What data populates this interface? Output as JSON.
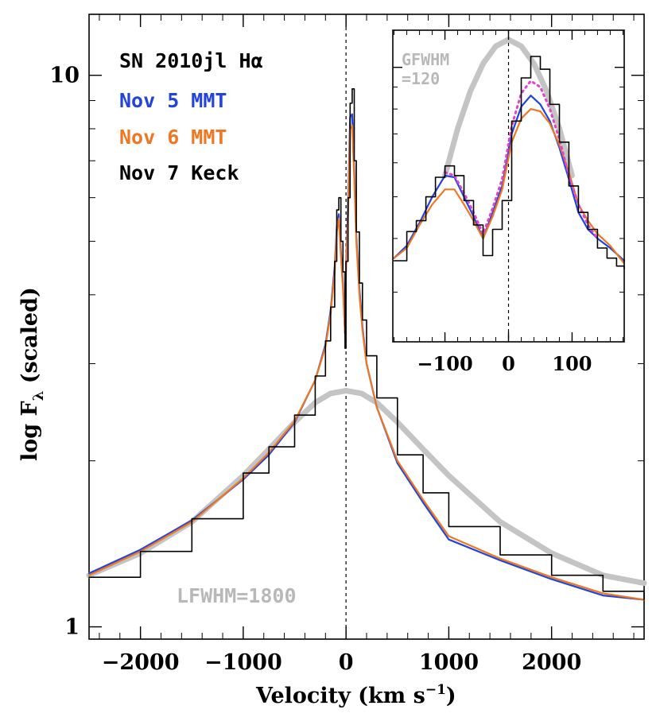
{
  "chart_data": [
    {
      "type": "line",
      "ylog": true,
      "xlabel": "Velocity (km s",
      "xlabel_sup": "−1",
      "xlabel_close": ")",
      "ylabel": "log F",
      "ylabel_sub": "λ",
      "ylabel_suffix": " (scaled)",
      "xlim": [
        -2500,
        2900
      ],
      "ylim": [
        0.95,
        12.9
      ],
      "x_ticks": [
        -2000,
        -1000,
        0,
        1000,
        2000
      ],
      "x_tick_labels": [
        "−2000",
        "−1000",
        "0",
        "1000",
        "2000"
      ],
      "y_ticks": [
        1,
        10
      ],
      "y_tick_labels": [
        "1",
        "10"
      ],
      "legend": [
        {
          "label": "SN 2010jl Hα",
          "color": "#000000"
        },
        {
          "label": "Nov 5 MMT",
          "color": "#2244dd"
        },
        {
          "label": "Nov 6 MMT",
          "color": "#ee7722"
        },
        {
          "label": "Nov 7 Keck",
          "color": "#000000"
        }
      ],
      "annotations": [
        {
          "text": "LFWHM=1800",
          "color": "#b8b8b8"
        }
      ],
      "series": [
        {
          "name": "Nov 7 Keck",
          "color": "#000000",
          "style": "steps",
          "x": [
            -2500,
            -2000,
            -1500,
            -1000,
            -750,
            -500,
            -300,
            -200,
            -150,
            -110,
            -90,
            -70,
            -50,
            -30,
            -10,
            0,
            20,
            40,
            60,
            80,
            100,
            130,
            160,
            200,
            300,
            500,
            750,
            1000,
            1500,
            2000,
            2500,
            2900
          ],
          "y": [
            1.23,
            1.37,
            1.57,
            1.9,
            2.12,
            2.42,
            2.85,
            3.3,
            3.8,
            4.6,
            5.7,
            6.0,
            5.0,
            4.4,
            3.2,
            4.6,
            6.0,
            8.9,
            9.45,
            7.0,
            5.2,
            4.2,
            3.6,
            3.1,
            2.6,
            2.05,
            1.75,
            1.52,
            1.35,
            1.24,
            1.16,
            1.12
          ]
        },
        {
          "name": "Nov 5 MMT",
          "color": "#2244dd",
          "style": "line",
          "x": [
            -2500,
            -2000,
            -1500,
            -1000,
            -750,
            -500,
            -300,
            -200,
            -150,
            -110,
            -90,
            -70,
            -50,
            -30,
            -10,
            0,
            20,
            40,
            60,
            80,
            100,
            130,
            160,
            200,
            300,
            500,
            750,
            1000,
            1500,
            2000,
            2500,
            2900
          ],
          "y": [
            1.25,
            1.38,
            1.56,
            1.85,
            2.05,
            2.35,
            2.8,
            3.25,
            3.75,
            4.5,
            5.3,
            5.6,
            4.8,
            4.2,
            3.4,
            4.5,
            5.8,
            8.4,
            8.5,
            6.7,
            5.1,
            4.1,
            3.5,
            3.0,
            2.5,
            1.98,
            1.68,
            1.44,
            1.32,
            1.22,
            1.14,
            1.12
          ]
        },
        {
          "name": "Nov 6 MMT",
          "color": "#ee7722",
          "style": "line",
          "x": [
            -2500,
            -2000,
            -1500,
            -1000,
            -750,
            -500,
            -300,
            -200,
            -150,
            -110,
            -90,
            -70,
            -50,
            -30,
            -10,
            0,
            20,
            40,
            60,
            80,
            100,
            130,
            160,
            200,
            300,
            500,
            750,
            1000,
            1500,
            2000,
            2500,
            2900
          ],
          "y": [
            1.24,
            1.37,
            1.55,
            1.86,
            2.07,
            2.36,
            2.8,
            3.22,
            3.7,
            4.4,
            5.2,
            5.5,
            4.7,
            4.1,
            3.4,
            4.4,
            5.6,
            8.0,
            8.1,
            6.5,
            5.0,
            4.0,
            3.45,
            3.0,
            2.5,
            2.0,
            1.7,
            1.46,
            1.33,
            1.23,
            1.15,
            1.12
          ]
        },
        {
          "name": "Lorentzian fit",
          "color": "#c4c4c4",
          "style": "fit",
          "x": [
            -2500,
            -2000,
            -1500,
            -1000,
            -750,
            -500,
            -300,
            -150,
            0,
            150,
            300,
            500,
            750,
            1000,
            1500,
            2000,
            2500,
            2900
          ],
          "y": [
            1.24,
            1.36,
            1.55,
            1.88,
            2.1,
            2.35,
            2.55,
            2.65,
            2.68,
            2.65,
            2.55,
            2.35,
            2.1,
            1.88,
            1.55,
            1.36,
            1.24,
            1.2
          ]
        }
      ]
    },
    {
      "type": "line",
      "ylog": true,
      "inset": true,
      "xlim": [
        -182,
        182
      ],
      "ylim": [
        2.3,
        12.2
      ],
      "x_ticks": [
        -100,
        0,
        100
      ],
      "x_tick_labels": [
        "−100",
        "0",
        "100"
      ],
      "annotations": [
        {
          "text": "GFWHM",
          "color": "#b8b8b8"
        },
        {
          "text": "=120",
          "color": "#b8b8b8"
        }
      ],
      "series": [
        {
          "name": "Nov 7 Keck",
          "color": "#000000",
          "style": "steps",
          "x": [
            -180,
            -160,
            -145,
            -130,
            -115,
            -100,
            -85,
            -70,
            -55,
            -40,
            -25,
            -10,
            5,
            20,
            35,
            50,
            65,
            80,
            95,
            110,
            125,
            140,
            155,
            170,
            182
          ],
          "y": [
            3.55,
            4.15,
            4.4,
            5.0,
            5.55,
            5.9,
            5.6,
            4.9,
            4.3,
            3.65,
            4.2,
            4.9,
            7.5,
            9.45,
            10.6,
            9.9,
            8.2,
            6.7,
            5.3,
            4.6,
            4.2,
            3.8,
            3.6,
            3.45,
            3.4
          ]
        },
        {
          "name": "Nov 5 MMT",
          "color": "#2244dd",
          "style": "line",
          "x": [
            -180,
            -160,
            -140,
            -120,
            -100,
            -85,
            -70,
            -55,
            -40,
            -25,
            -10,
            5,
            20,
            35,
            50,
            65,
            80,
            95,
            110,
            125,
            140,
            160,
            182
          ],
          "y": [
            3.6,
            3.85,
            4.35,
            5.0,
            5.6,
            5.55,
            5.0,
            4.5,
            4.0,
            4.6,
            5.3,
            7.0,
            8.1,
            8.6,
            8.2,
            7.5,
            6.5,
            5.5,
            4.6,
            4.2,
            4.0,
            3.8,
            3.55
          ]
        },
        {
          "name": "Nov 6 MMT",
          "color": "#ee7722",
          "style": "line",
          "x": [
            -180,
            -160,
            -140,
            -120,
            -100,
            -85,
            -70,
            -55,
            -40,
            -25,
            -10,
            5,
            20,
            35,
            50,
            65,
            80,
            95,
            110,
            125,
            140,
            160,
            182
          ],
          "y": [
            3.6,
            3.8,
            4.3,
            4.8,
            5.2,
            5.2,
            4.8,
            4.4,
            4.0,
            4.5,
            5.2,
            6.7,
            7.6,
            8.0,
            7.9,
            7.4,
            6.6,
            5.7,
            4.8,
            4.4,
            4.1,
            3.85,
            3.5
          ]
        },
        {
          "name": "Gaussian fit",
          "color": "#c4c4c4",
          "style": "fit",
          "x": [
            -100,
            -80,
            -60,
            -40,
            -20,
            0,
            20,
            40,
            60,
            80,
            100
          ],
          "y": [
            5.6,
            7.2,
            8.8,
            10.2,
            11.2,
            11.6,
            11.2,
            10.2,
            8.8,
            7.2,
            5.6
          ]
        },
        {
          "name": "dotted profile",
          "color": "#dd44cc",
          "style": "dotted",
          "x": [
            -100,
            -85,
            -70,
            -55,
            -40,
            -25,
            -10,
            5,
            20,
            35,
            50,
            65,
            80,
            95,
            110,
            125,
            140
          ],
          "y": [
            5.7,
            5.6,
            5.1,
            4.6,
            4.1,
            4.7,
            5.5,
            7.3,
            8.7,
            9.3,
            9.0,
            8.0,
            6.8,
            5.6,
            4.8,
            4.3,
            4.0
          ]
        }
      ]
    }
  ]
}
